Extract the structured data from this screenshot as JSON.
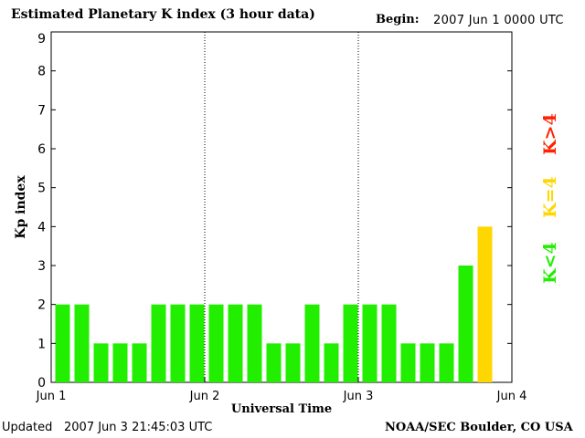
{
  "header": {
    "title": "Estimated Planetary K index (3 hour data)",
    "begin_label": "Begin:",
    "begin_value": "2007 Jun 1 0000 UTC"
  },
  "footer": {
    "updated_label": "Updated",
    "updated_value": "2007 Jun  3 21:45:03 UTC",
    "credit": "NOAA/SEC Boulder, CO USA"
  },
  "chart_data": {
    "type": "bar",
    "title": "Estimated Planetary K index (3 hour data)",
    "xlabel": "Universal Time",
    "ylabel": "Kp index",
    "ylim": [
      0,
      9
    ],
    "yticks": [
      "0",
      "1",
      "2",
      "3",
      "4",
      "5",
      "6",
      "7",
      "8",
      "9"
    ],
    "xticks": [
      "Jun 1",
      "Jun 2",
      "Jun 3",
      "Jun 4"
    ],
    "slots_per_day": 8,
    "values": [
      2,
      2,
      1,
      1,
      1,
      2,
      2,
      2,
      2,
      2,
      2,
      1,
      1,
      2,
      1,
      2,
      2,
      2,
      1,
      1,
      1,
      3,
      4
    ],
    "colors": {
      "below": "#22ee00",
      "equal": "#ffd700",
      "above": "#ff2200"
    },
    "legend": [
      {
        "label": "K<4",
        "color": "#22ee00"
      },
      {
        "label": "K=4",
        "color": "#ffd700"
      },
      {
        "label": "K>4",
        "color": "#ff2200"
      }
    ]
  }
}
